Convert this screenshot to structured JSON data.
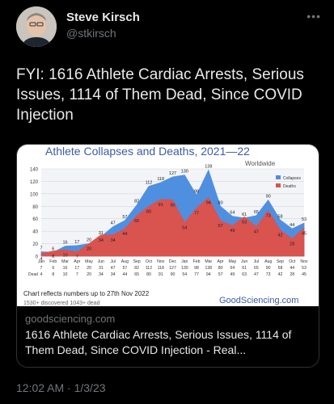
{
  "author": {
    "name": "Steve Kirsch",
    "handle": "@stkirsch"
  },
  "tweet": {
    "text": "FYI: 1616 Athlete Cardiac Arrests, Serious Issues, 1114 of Them Dead, Since COVID Injection",
    "timestamp": "12:02 AM · 1/3/23"
  },
  "card": {
    "domain": "goodsciencing.com",
    "title": "1616 Athlete Cardiac Arrests, Serious Issues, 1114 of Them Dead, Since COVID Injection - Real..."
  },
  "icons": {
    "more": "more-icon",
    "avatar": "avatar"
  },
  "colors": {
    "background": "#000000",
    "text": "#e7e9ea",
    "muted": "#71767b",
    "collapses": "#4f8fe0",
    "deaths": "#d9534f"
  },
  "chart_data": {
    "type": "area",
    "title": "Athlete Collapses and Deaths, 2021—22",
    "subtitle": "Worldwide",
    "categories": [
      "Jan",
      "Feb",
      "Mar",
      "Apr",
      "May",
      "Jun",
      "Jul",
      "Aug",
      "Sep",
      "Oct",
      "Nov",
      "Dec",
      "Jan",
      "Feb",
      "Mar",
      "Apr",
      "May",
      "Jun",
      "Jul",
      "Aug",
      "Sep",
      "Oct",
      "Nov"
    ],
    "series": [
      {
        "name": "Collapses",
        "values": [
          7,
          6,
          16,
          17,
          20,
          31,
          47,
          57,
          82,
          112,
          118,
          127,
          130,
          98,
          138,
          80,
          64,
          61,
          65,
          90,
          58,
          44,
          53
        ]
      },
      {
        "name": "Deaths",
        "values": [
          4,
          8,
          10,
          7,
          20,
          34,
          34,
          44,
          65,
          80,
          91,
          90,
          54,
          77,
          94,
          57,
          49,
          63,
          47,
          73,
          42,
          28,
          45
        ]
      }
    ],
    "row_label": "Dead",
    "ylim": [
      0,
      140
    ],
    "yticks": [
      0,
      20,
      40,
      60,
      80,
      100,
      120,
      140
    ],
    "legend": [
      "Collapses",
      "Deaths"
    ],
    "legend_position": "right",
    "footnote": "Chart reflects numbers up to 27th Nov 2022",
    "footnote_partial": "1530+ discovered 1043+ dead",
    "watermark": "GoodSciencing.com"
  }
}
